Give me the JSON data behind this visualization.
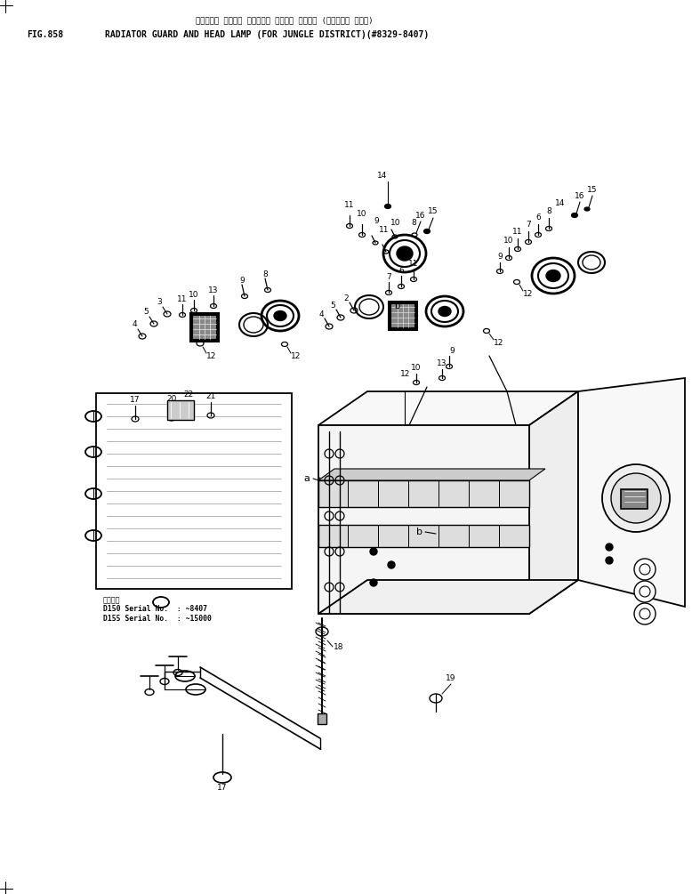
{
  "fig_number": "FIG.858",
  "title_japanese": "ラジエータ ガード・ オービテ・ ヘッド・ ランプ・ (ジャングル ショウ)",
  "title_english": "RADIATOR GUARD AND HEAD LAMP (FOR JUNGLE DISTRICT)(#8329-8407)",
  "background_color": "#ffffff",
  "line_color": "#000000",
  "text_color": "#000000",
  "fig_width": 7.78,
  "fig_height": 10.05
}
